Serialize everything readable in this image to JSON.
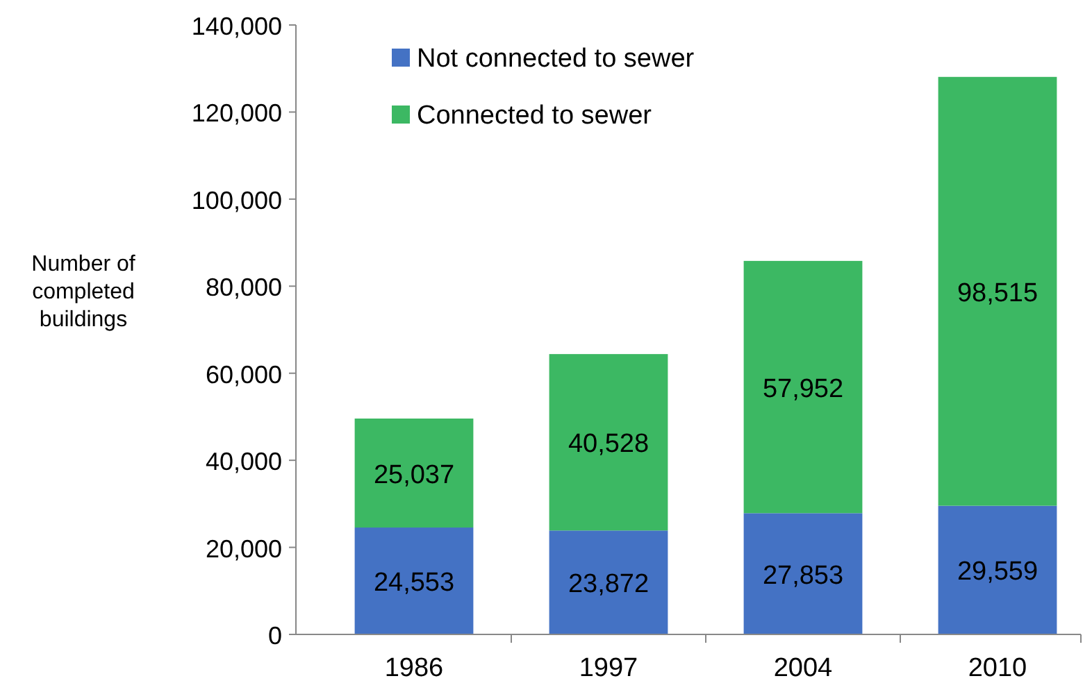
{
  "chart_data": {
    "type": "bar",
    "stacked": true,
    "ylabel": "Number of completed buildings",
    "categories": [
      "1986",
      "1997",
      "2004",
      "2010"
    ],
    "series": [
      {
        "name": "Not connected to sewer",
        "color": "#4472c4",
        "values": [
          24553,
          23872,
          27853,
          29559
        ],
        "value_labels": [
          "24,553",
          "23,872",
          "27,853",
          "29,559"
        ]
      },
      {
        "name": "Connected to sewer",
        "color": "#3cb863",
        "values": [
          25037,
          40528,
          57952,
          98515
        ],
        "value_labels": [
          "25,037",
          "40,528",
          "57,952",
          "98,515"
        ]
      }
    ],
    "ylim": [
      0,
      140000
    ],
    "yticks": [
      {
        "value": 0,
        "label": "0"
      },
      {
        "value": 20000,
        "label": "20,000"
      },
      {
        "value": 40000,
        "label": "40,000"
      },
      {
        "value": 60000,
        "label": "60,000"
      },
      {
        "value": 80000,
        "label": "80,000"
      },
      {
        "value": 100000,
        "label": "100,000"
      },
      {
        "value": 120000,
        "label": "120,000"
      },
      {
        "value": 140000,
        "label": "140,000"
      }
    ],
    "legend": "top left",
    "grid": false
  }
}
